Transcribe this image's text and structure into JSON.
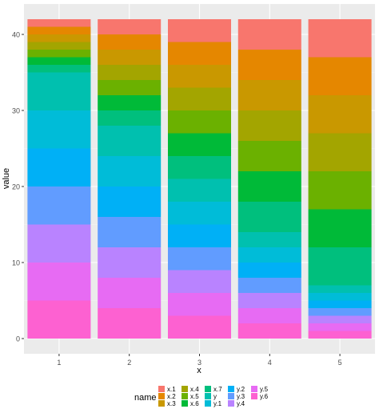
{
  "chart_data": {
    "type": "bar",
    "stacked": true,
    "xlabel": "x",
    "ylabel": "value",
    "ylim": [
      0,
      42
    ],
    "y_ticks": [
      0,
      10,
      20,
      30,
      40
    ],
    "grid": true,
    "categories": [
      "1",
      "2",
      "3",
      "4",
      "5"
    ],
    "legend": {
      "title": "name",
      "position": "bottom",
      "entries": [
        "x.1",
        "x.2",
        "x.3",
        "x.4",
        "x.5",
        "x.6",
        "x.7",
        "y",
        "y.1",
        "y.2",
        "y.3",
        "y.4",
        "y.5",
        "y.6"
      ],
      "colors": [
        "#F8766D",
        "#E58700",
        "#C99800",
        "#A3A500",
        "#6BB100",
        "#00BA38",
        "#00BF7D",
        "#00C0AF",
        "#00BCD8",
        "#00B0F6",
        "#619CFF",
        "#B983FF",
        "#E76BF3",
        "#FD61D1"
      ]
    },
    "series": [
      {
        "name": "x.1",
        "values": [
          1,
          2,
          3,
          4,
          5
        ]
      },
      {
        "name": "x.2",
        "values": [
          1,
          2,
          3,
          4,
          5
        ]
      },
      {
        "name": "x.3",
        "values": [
          1,
          2,
          3,
          4,
          5
        ]
      },
      {
        "name": "x.4",
        "values": [
          1,
          2,
          3,
          4,
          5
        ]
      },
      {
        "name": "x.5",
        "values": [
          1,
          2,
          3,
          4,
          5
        ]
      },
      {
        "name": "x.6",
        "values": [
          1,
          2,
          3,
          4,
          5
        ]
      },
      {
        "name": "x.7",
        "values": [
          1,
          2,
          3,
          4,
          5
        ]
      },
      {
        "name": "y",
        "values": [
          5,
          4,
          3,
          2,
          1
        ]
      },
      {
        "name": "y.1",
        "values": [
          5,
          4,
          3,
          2,
          1
        ]
      },
      {
        "name": "y.2",
        "values": [
          5,
          4,
          3,
          2,
          1
        ]
      },
      {
        "name": "y.3",
        "values": [
          5,
          4,
          3,
          2,
          1
        ]
      },
      {
        "name": "y.4",
        "values": [
          5,
          4,
          3,
          2,
          1
        ]
      },
      {
        "name": "y.5",
        "values": [
          5,
          4,
          3,
          2,
          1
        ]
      },
      {
        "name": "y.6",
        "values": [
          5,
          4,
          3,
          2,
          1
        ]
      }
    ]
  }
}
